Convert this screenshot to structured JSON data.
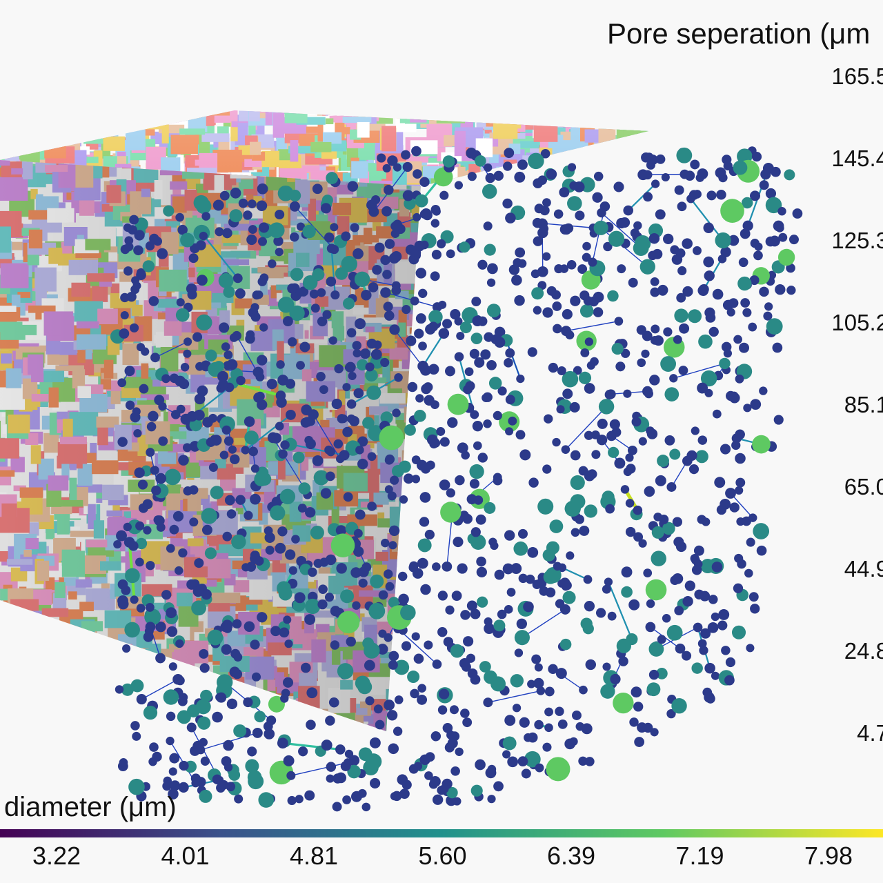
{
  "separation_legend": {
    "title": "Pore seperation (μm",
    "ticks": [
      "165.5",
      "145.4",
      "125.3",
      "105.2",
      "85.1",
      "65.0",
      "44.9",
      "24.8",
      "4.7"
    ]
  },
  "diameter_colorbar": {
    "title": "diameter (μm)",
    "ticks": [
      "3.22",
      "4.01",
      "4.81",
      "5.60",
      "6.39",
      "7.19",
      "7.98"
    ],
    "colors": [
      "#440154",
      "#3b528b",
      "#21918c",
      "#5ec962",
      "#fde725"
    ]
  },
  "colors": {
    "grain_palette": [
      "#f08080",
      "#b0a0f0",
      "#80e0b0",
      "#f0d060",
      "#a0d0f0",
      "#f0a0d0",
      "#90d070",
      "#e8c0a0",
      "#c0c0f0",
      "#f09060",
      "#70d0d0",
      "#d090e0",
      "#ffffff"
    ],
    "node_small": "#2c3a8a",
    "node_mid": "#2a8a86",
    "node_large": "#5ec962",
    "edge_palette": [
      "#2040c0",
      "#2090b0",
      "#30c0a0",
      "#70e040",
      "#c8e020"
    ]
  }
}
